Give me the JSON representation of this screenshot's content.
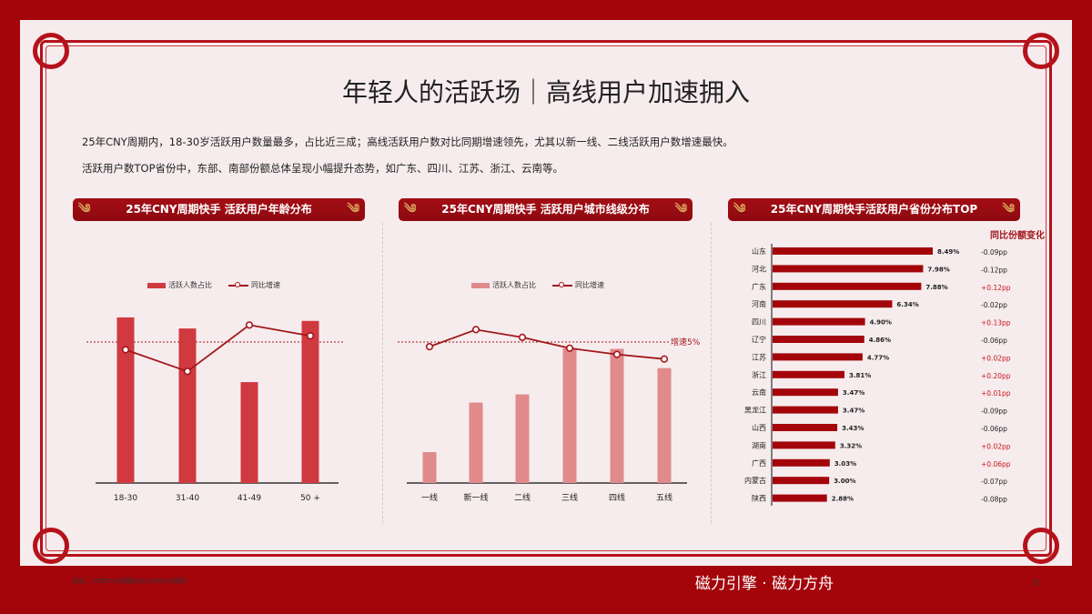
{
  "title": "年轻人的活跃场｜高线用户加速拥入",
  "summary": [
    "25年CNY周期内，18-30岁活跃用户数量最多，占比近三成；高线活跃用户数对比同期增速领先，尤其以新一线、二线活跃用户数增速最快。",
    "活跃用户数TOP省份中，东部、南部份额总体呈现小幅提升态势，如广东、四川、江苏、浙江、云南等。"
  ],
  "colors": {
    "brand_red": "#a3050b",
    "bar_red": "#d0393f",
    "bar_pink": "#e08a8c",
    "line": "#a3161c",
    "positive": "#c8161d"
  },
  "chart_data": [
    {
      "type": "bar+line",
      "title": "25年CNY周期快手 活跃用户年龄分布",
      "categories": [
        "18-30",
        "31-40",
        "41-49",
        "50 +"
      ],
      "series": [
        {
          "name": "活跃人数占比",
          "type": "bar",
          "values": [
            28.4,
            26.5,
            17.3,
            27.8
          ]
        },
        {
          "name": "同比增速",
          "type": "line",
          "values": [
            4.5,
            3.1,
            6.1,
            5.4
          ]
        }
      ],
      "reference_line": {
        "value": 5
      }
    },
    {
      "type": "bar+line",
      "title": "25年CNY周期快手 活跃用户城市线级分布",
      "categories": [
        "一线",
        "新一线",
        "二线",
        "三线",
        "四线",
        "五线"
      ],
      "series": [
        {
          "name": "活跃人数占比",
          "type": "bar",
          "values": [
            5.3,
            13.8,
            15.2,
            23.1,
            23.0,
            19.7
          ]
        },
        {
          "name": "同比增速",
          "type": "line",
          "values": [
            4.7,
            5.8,
            5.3,
            4.6,
            4.2,
            3.9
          ]
        }
      ],
      "reference_line": {
        "value": 5,
        "label": "增速5%"
      }
    },
    {
      "type": "bar",
      "orientation": "horizontal",
      "title": "25年CNY周期快手活跃用户省份分布TOP",
      "change_header": "同比份额变化",
      "categories": [
        "山东",
        "河北",
        "广东",
        "河南",
        "四川",
        "辽宁",
        "江苏",
        "浙江",
        "云南",
        "黑龙江",
        "山西",
        "湖南",
        "广西",
        "内蒙古",
        "陕西"
      ],
      "values": [
        8.49,
        7.98,
        7.88,
        6.34,
        4.9,
        4.86,
        4.77,
        3.81,
        3.47,
        3.47,
        3.43,
        3.32,
        3.03,
        3.0,
        2.88
      ],
      "value_labels": [
        "8.49%",
        "7.98%",
        "7.88%",
        "6.34%",
        "4.90%",
        "4.86%",
        "4.77%",
        "3.81%",
        "3.47%",
        "3.47%",
        "3.43%",
        "3.32%",
        "3.03%",
        "3.00%",
        "2.88%"
      ],
      "changes": [
        "-0.09pp",
        "-0.12pp",
        "+0.12pp",
        "-0.02pp",
        "+0.13pp",
        "-0.06pp",
        "+0.02pp",
        "+0.20pp",
        "+0.01pp",
        "-0.09pp",
        "-0.06pp",
        "+0.02pp",
        "+0.06pp",
        "-0.07pp",
        "-0.08pp"
      ]
    }
  ],
  "footnote": "周比：25年CNY周期对比24年CNY周期",
  "brand": "磁力引擎 · 磁力方舟",
  "page_number": "5"
}
